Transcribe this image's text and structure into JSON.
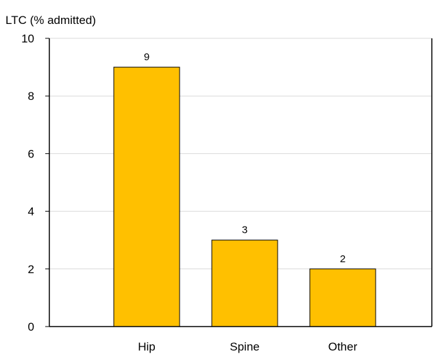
{
  "chart_data": {
    "type": "bar",
    "ylabel": "LTC (% admitted)",
    "categories": [
      "Hip",
      "Spine",
      "Other"
    ],
    "values": [
      9,
      3,
      2
    ],
    "data_labels": [
      "9",
      "3",
      "2"
    ],
    "ylim": [
      0,
      10
    ],
    "yticks": [
      0,
      2,
      4,
      6,
      8,
      10
    ],
    "ytick_labels": [
      "0",
      "2",
      "4",
      "6",
      "8",
      "10"
    ],
    "grid": true,
    "bar_color": "#ffc000",
    "bar_edge_color": "#000000",
    "gridline_color": "#d9d9d9"
  }
}
